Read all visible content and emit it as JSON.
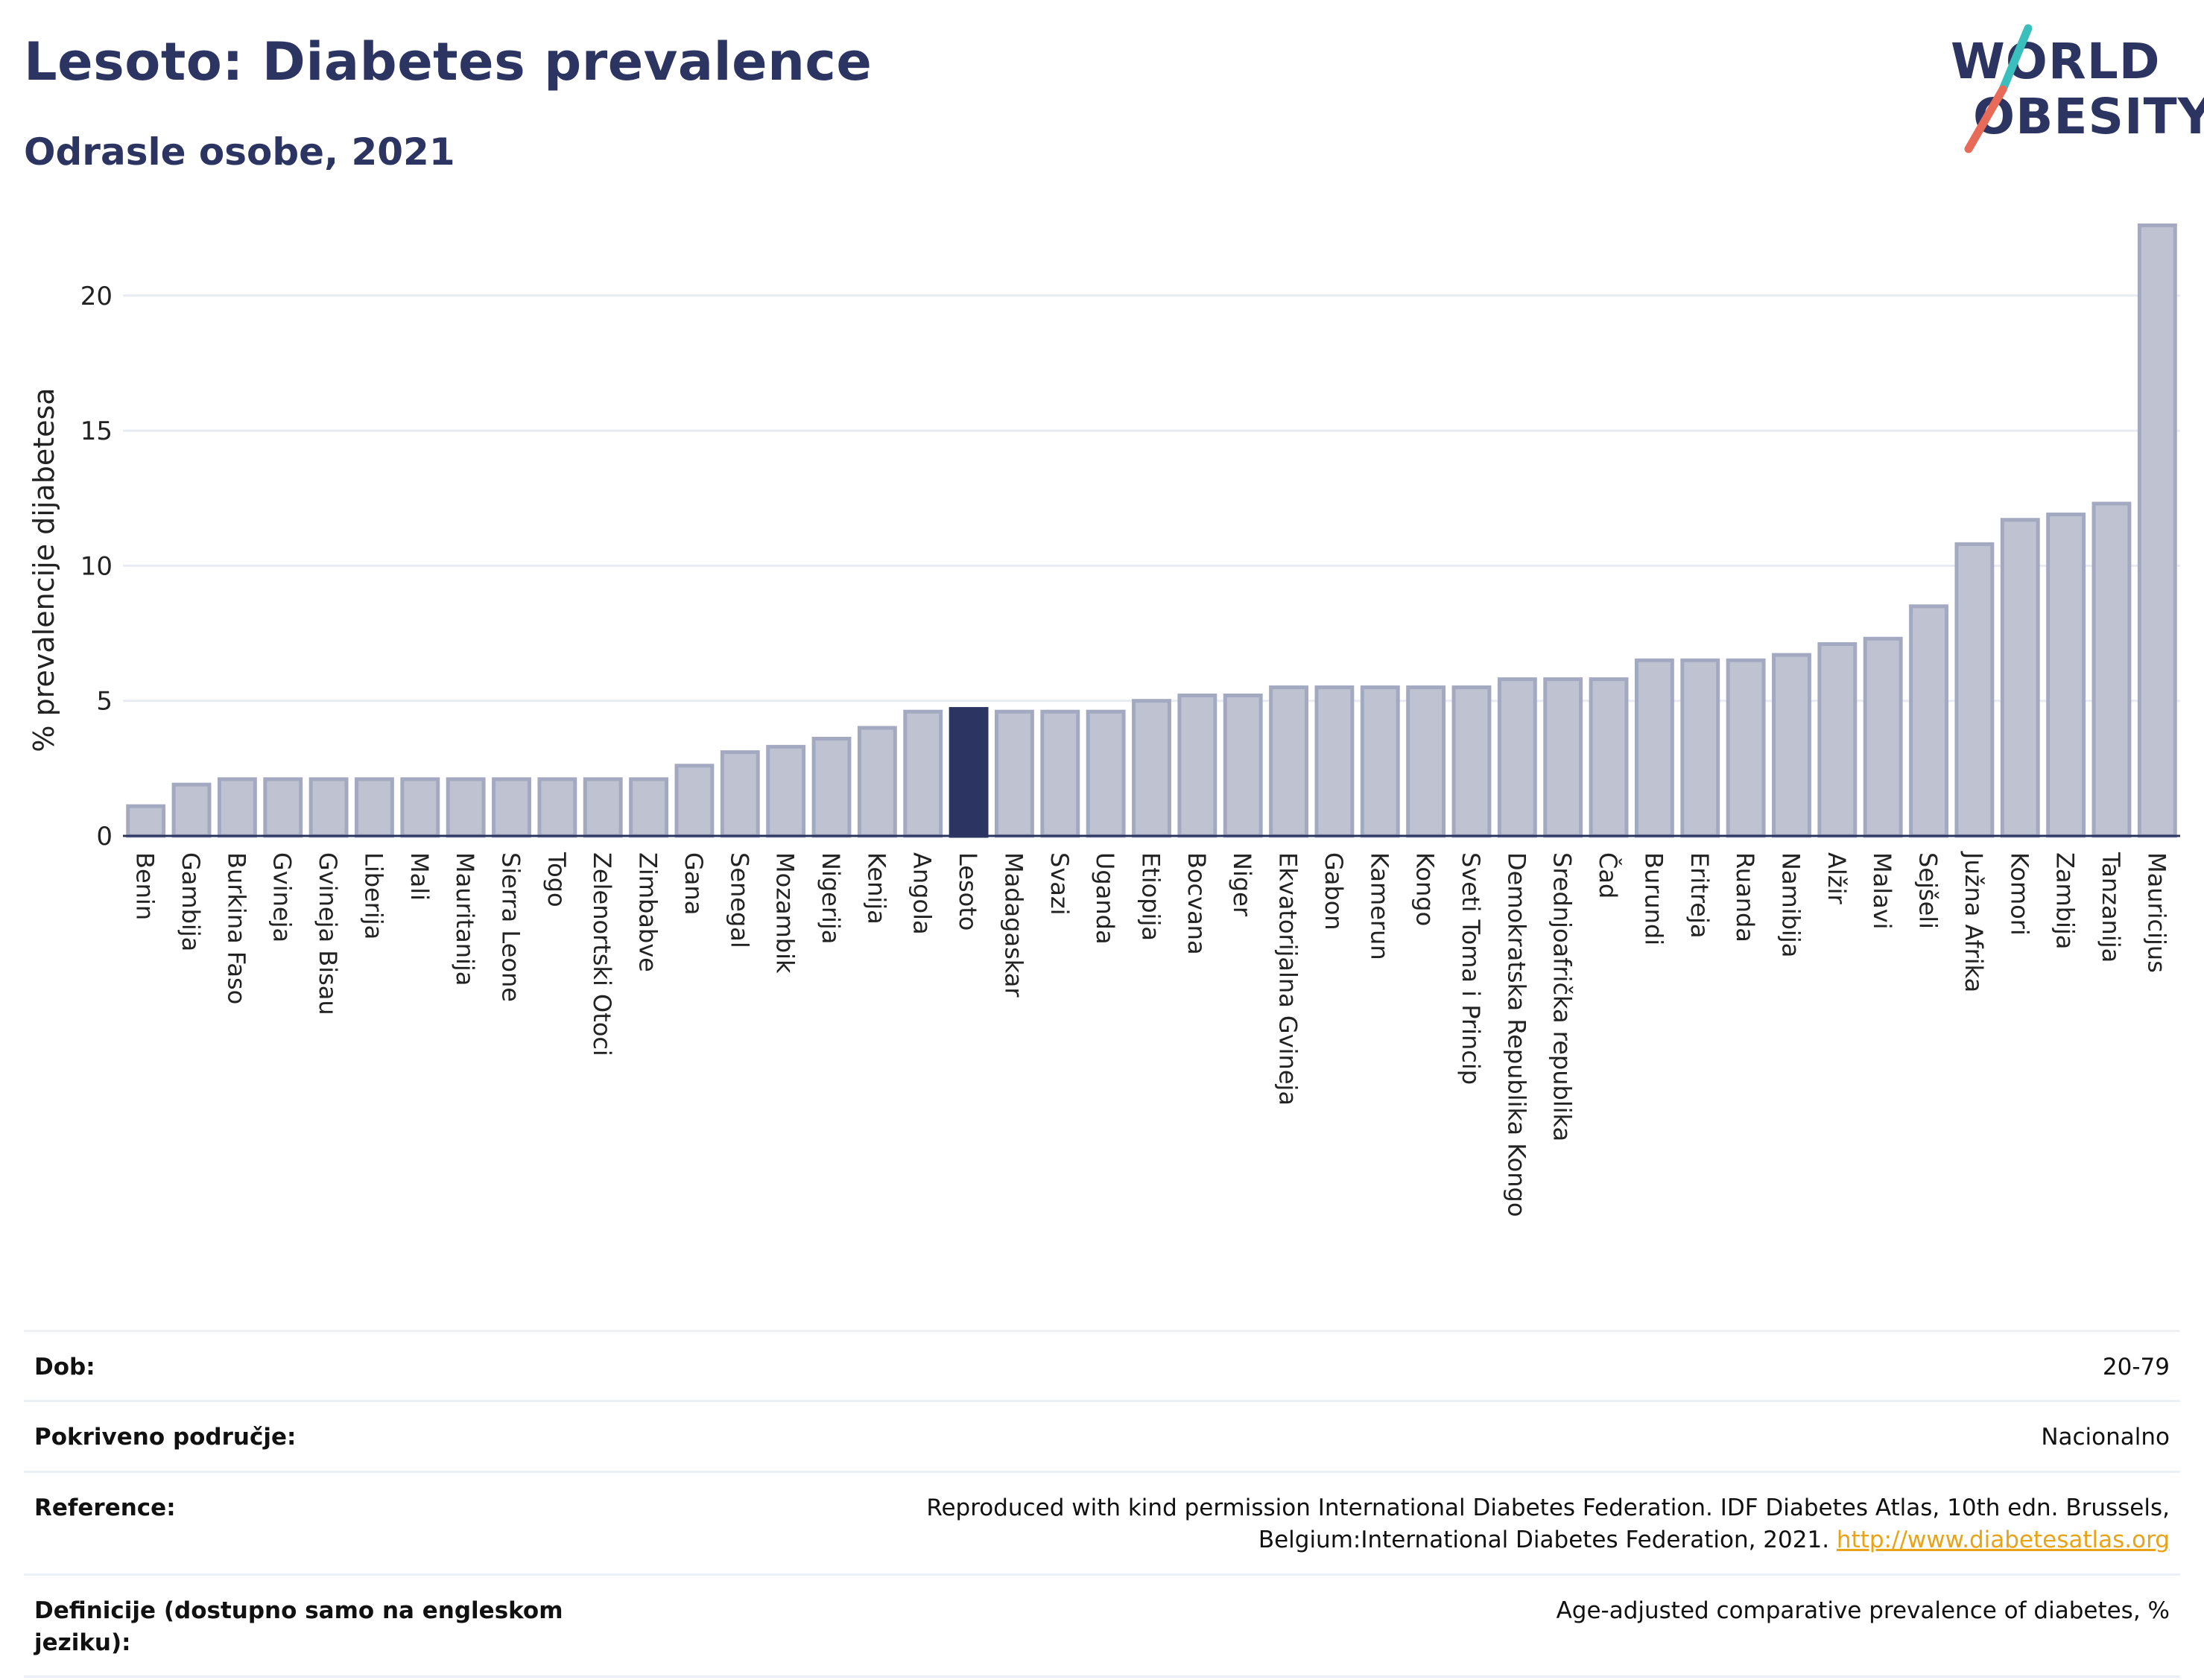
{
  "header": {
    "title": "Lesoto: Diabetes prevalence",
    "subtitle": "Odrasle osobe, 2021"
  },
  "logo": {
    "line1": "WORLD",
    "line2": "OBESITY",
    "accent_colors": [
      "#3bbfbd",
      "#e86b5a"
    ]
  },
  "chart_data": {
    "type": "bar",
    "ylabel": "% prevalencije dijabetesa",
    "xlabel": "",
    "ylim": [
      0,
      23
    ],
    "yticks": [
      0,
      5,
      10,
      15,
      20
    ],
    "grid": true,
    "highlight": "Lesoto",
    "colors": {
      "bar": "#bfc3d1",
      "bar_edge": "#a3a9c0",
      "highlight": "#2c3561"
    },
    "categories": [
      "Benin",
      "Gambija",
      "Burkina Faso",
      "Gvineja",
      "Gvineja Bisau",
      "Liberija",
      "Mali",
      "Mauritanija",
      "Sierra Leone",
      "Togo",
      "Zelenortski Otoci",
      "Zimbabve",
      "Gana",
      "Senegal",
      "Mozambik",
      "Nigerija",
      "Kenija",
      "Angola",
      "Lesoto",
      "Madagaskar",
      "Svazi",
      "Uganda",
      "Etiopija",
      "Bocvana",
      "Niger",
      "Ekvatorijalna Gvineja",
      "Gabon",
      "Kamerun",
      "Kongo",
      "Sveti Toma i Princip",
      "Demokratska Republika Kongo",
      "Srednjoafrička republika",
      "Čad",
      "Burundi",
      "Eritreja",
      "Ruanda",
      "Namibija",
      "Alžir",
      "Malavi",
      "Sejšeli",
      "Južna Afrika",
      "Komori",
      "Zambija",
      "Tanzanija",
      "Mauricijus"
    ],
    "values": [
      1.1,
      1.9,
      2.1,
      2.1,
      2.1,
      2.1,
      2.1,
      2.1,
      2.1,
      2.1,
      2.1,
      2.1,
      2.6,
      3.1,
      3.3,
      3.6,
      4.0,
      4.6,
      4.7,
      4.6,
      4.6,
      4.6,
      5.0,
      5.2,
      5.2,
      5.5,
      5.5,
      5.5,
      5.5,
      5.5,
      5.8,
      5.8,
      5.8,
      6.5,
      6.5,
      6.5,
      6.7,
      7.1,
      7.3,
      8.5,
      10.8,
      11.7,
      11.9,
      12.3,
      22.6
    ]
  },
  "meta": [
    {
      "label": "Dob:",
      "value": "20-79"
    },
    {
      "label": "Pokriveno područje:",
      "value": "Nacionalno"
    },
    {
      "label": "Reference:",
      "value": "Reproduced with kind permission International Diabetes Federation.  IDF Diabetes Atlas, 10th edn. Brussels, Belgium:International Diabetes Federation, 2021.",
      "link": "http://www.diabetesatlas.org"
    },
    {
      "label": "Definicije (dostupno samo na engleskom jeziku):",
      "value": "Age-adjusted comparative prevalence of diabetes, %"
    }
  ]
}
